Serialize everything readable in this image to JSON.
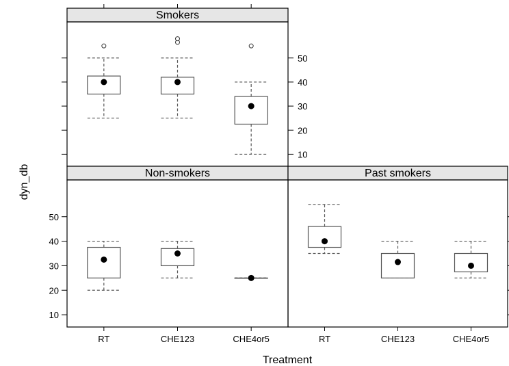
{
  "chart_data": {
    "type": "box",
    "xlabel": "Treatment",
    "ylabel": "dyn_db",
    "categories": [
      "RT",
      "CHE123",
      "CHE4or5"
    ],
    "ylim": [
      5,
      65
    ],
    "yticks": [
      10,
      20,
      30,
      40,
      50
    ],
    "panels": [
      {
        "name": "Smokers",
        "boxes": [
          {
            "category": "RT",
            "min": 25,
            "q1": 35,
            "median": 40,
            "q3": 42.5,
            "max": 50,
            "outliers": [
              55
            ]
          },
          {
            "category": "CHE123",
            "min": 25,
            "q1": 35,
            "median": 40,
            "q3": 42,
            "max": 50,
            "outliers": [
              56.5,
              58
            ]
          },
          {
            "category": "CHE4or5",
            "min": 10,
            "q1": 22.5,
            "median": 30,
            "q3": 34,
            "max": 40,
            "outliers": [
              55
            ]
          }
        ]
      },
      {
        "name": "Non-smokers",
        "boxes": [
          {
            "category": "RT",
            "min": 20,
            "q1": 25,
            "median": 32.5,
            "q3": 37.5,
            "max": 40,
            "outliers": []
          },
          {
            "category": "CHE123",
            "min": 25,
            "q1": 30,
            "median": 35,
            "q3": 37,
            "max": 40,
            "outliers": []
          },
          {
            "category": "CHE4or5",
            "min": 25,
            "q1": 25,
            "median": 25,
            "q3": 25,
            "max": 25,
            "outliers": []
          }
        ]
      },
      {
        "name": "Past smokers",
        "boxes": [
          {
            "category": "RT",
            "min": 35,
            "q1": 37.5,
            "median": 40,
            "q3": 46,
            "max": 55,
            "outliers": []
          },
          {
            "category": "CHE123",
            "min": 25,
            "q1": 25,
            "median": 31.5,
            "q3": 35,
            "max": 40,
            "outliers": []
          },
          {
            "category": "CHE4or5",
            "min": 25,
            "q1": 27.5,
            "median": 30,
            "q3": 35,
            "max": 40,
            "outliers": []
          }
        ]
      }
    ]
  }
}
